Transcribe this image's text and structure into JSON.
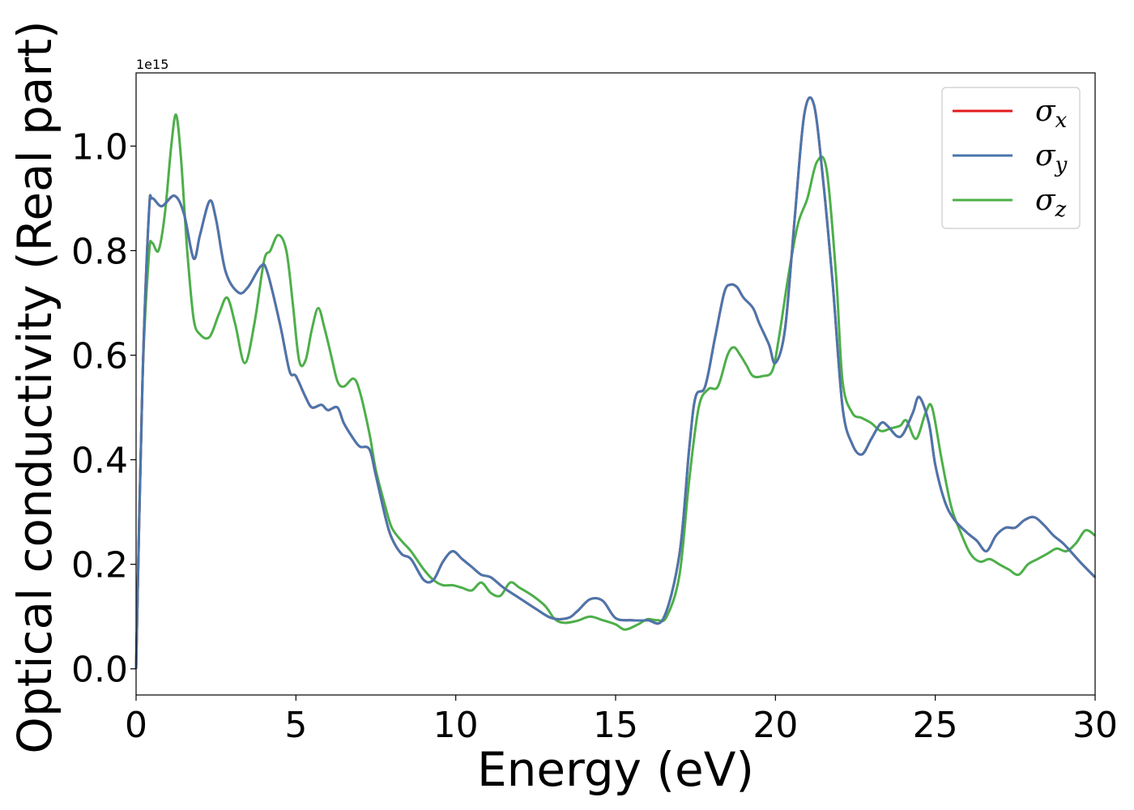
{
  "chart_data": {
    "type": "line",
    "xlabel": "Energy (eV)",
    "ylabel": "Optical conductivity (Real part)",
    "y_offset_label": "1e15",
    "xlim": [
      0,
      30
    ],
    "ylim": [
      -0.05,
      1.14
    ],
    "x_ticks": [
      0,
      5,
      10,
      15,
      20,
      25,
      30
    ],
    "x_tick_labels": [
      "0",
      "5",
      "10",
      "15",
      "20",
      "25",
      "30"
    ],
    "y_ticks": [
      0.0,
      0.2,
      0.4,
      0.6,
      0.8,
      1.0
    ],
    "y_tick_labels": [
      "0.0",
      "0.2",
      "0.4",
      "0.6",
      "0.8",
      "1.0"
    ],
    "grid": false,
    "legend_position": "top-right",
    "series": [
      {
        "name": "σx",
        "symbol": "σ",
        "subscript": "x",
        "color": "#e41a1c",
        "x": [
          0,
          0.2,
          0.4,
          0.5,
          0.8,
          1.2,
          1.5,
          1.8,
          2.0,
          2.3,
          2.5,
          2.8,
          3.2,
          3.5,
          3.9,
          4.1,
          4.5,
          4.8,
          5.0,
          5.3,
          5.5,
          5.8,
          6.0,
          6.3,
          6.5,
          6.8,
          7.0,
          7.3,
          7.5,
          7.8,
          8.0,
          8.3,
          8.6,
          9.0,
          9.3,
          9.6,
          9.9,
          10.2,
          10.5,
          10.8,
          11.1,
          11.5,
          12.0,
          12.5,
          13.0,
          13.5,
          13.8,
          14.2,
          14.6,
          15.0,
          15.5,
          16.0,
          16.5,
          17.0,
          17.3,
          17.5,
          17.8,
          18.1,
          18.4,
          18.6,
          18.8,
          19.0,
          19.3,
          19.5,
          19.8,
          20.0,
          20.3,
          20.6,
          20.9,
          21.2,
          21.5,
          21.8,
          22.1,
          22.4,
          22.7,
          23.0,
          23.3,
          23.5,
          23.8,
          24.0,
          24.3,
          24.5,
          24.8,
          25.0,
          25.3,
          25.6,
          26.0,
          26.3,
          26.6,
          26.9,
          27.2,
          27.5,
          27.8,
          28.1,
          28.4,
          28.7,
          29.0,
          29.3,
          29.6,
          30.0
        ],
        "y": [
          0.0,
          0.55,
          0.87,
          0.9,
          0.885,
          0.905,
          0.87,
          0.785,
          0.83,
          0.895,
          0.86,
          0.76,
          0.72,
          0.73,
          0.77,
          0.76,
          0.66,
          0.57,
          0.56,
          0.52,
          0.5,
          0.505,
          0.495,
          0.5,
          0.47,
          0.44,
          0.425,
          0.42,
          0.37,
          0.29,
          0.25,
          0.22,
          0.21,
          0.17,
          0.17,
          0.205,
          0.225,
          0.21,
          0.195,
          0.18,
          0.175,
          0.155,
          0.135,
          0.115,
          0.097,
          0.097,
          0.11,
          0.133,
          0.13,
          0.097,
          0.093,
          0.093,
          0.097,
          0.22,
          0.42,
          0.52,
          0.54,
          0.63,
          0.72,
          0.735,
          0.73,
          0.71,
          0.69,
          0.66,
          0.62,
          0.585,
          0.65,
          0.86,
          1.06,
          1.08,
          0.93,
          0.73,
          0.5,
          0.43,
          0.41,
          0.44,
          0.47,
          0.465,
          0.445,
          0.45,
          0.49,
          0.52,
          0.47,
          0.39,
          0.32,
          0.285,
          0.26,
          0.245,
          0.225,
          0.255,
          0.27,
          0.27,
          0.285,
          0.29,
          0.275,
          0.255,
          0.24,
          0.22,
          0.2,
          0.175
        ]
      },
      {
        "name": "σy",
        "symbol": "σ",
        "subscript": "y",
        "color": "#4a76ad",
        "x": [
          0,
          0.2,
          0.4,
          0.5,
          0.8,
          1.2,
          1.5,
          1.8,
          2.0,
          2.3,
          2.5,
          2.8,
          3.2,
          3.5,
          3.9,
          4.1,
          4.5,
          4.8,
          5.0,
          5.3,
          5.5,
          5.8,
          6.0,
          6.3,
          6.5,
          6.8,
          7.0,
          7.3,
          7.5,
          7.8,
          8.0,
          8.3,
          8.6,
          9.0,
          9.3,
          9.6,
          9.9,
          10.2,
          10.5,
          10.8,
          11.1,
          11.5,
          12.0,
          12.5,
          13.0,
          13.5,
          13.8,
          14.2,
          14.6,
          15.0,
          15.5,
          16.0,
          16.5,
          17.0,
          17.3,
          17.5,
          17.8,
          18.1,
          18.4,
          18.6,
          18.8,
          19.0,
          19.3,
          19.5,
          19.8,
          20.0,
          20.3,
          20.6,
          20.9,
          21.2,
          21.5,
          21.8,
          22.1,
          22.4,
          22.7,
          23.0,
          23.3,
          23.5,
          23.8,
          24.0,
          24.3,
          24.5,
          24.8,
          25.0,
          25.3,
          25.6,
          26.0,
          26.3,
          26.6,
          26.9,
          27.2,
          27.5,
          27.8,
          28.1,
          28.4,
          28.7,
          29.0,
          29.3,
          29.6,
          30.0
        ],
        "y": [
          0.0,
          0.55,
          0.87,
          0.9,
          0.885,
          0.905,
          0.87,
          0.785,
          0.83,
          0.895,
          0.86,
          0.76,
          0.72,
          0.73,
          0.77,
          0.76,
          0.66,
          0.57,
          0.56,
          0.52,
          0.5,
          0.505,
          0.495,
          0.5,
          0.47,
          0.44,
          0.425,
          0.42,
          0.37,
          0.29,
          0.25,
          0.22,
          0.21,
          0.17,
          0.17,
          0.205,
          0.225,
          0.21,
          0.195,
          0.18,
          0.175,
          0.155,
          0.135,
          0.115,
          0.097,
          0.097,
          0.11,
          0.133,
          0.13,
          0.097,
          0.093,
          0.093,
          0.097,
          0.22,
          0.42,
          0.52,
          0.54,
          0.63,
          0.72,
          0.735,
          0.73,
          0.71,
          0.69,
          0.66,
          0.62,
          0.585,
          0.65,
          0.86,
          1.06,
          1.08,
          0.93,
          0.73,
          0.5,
          0.43,
          0.41,
          0.44,
          0.47,
          0.465,
          0.445,
          0.45,
          0.49,
          0.52,
          0.47,
          0.39,
          0.32,
          0.285,
          0.26,
          0.245,
          0.225,
          0.255,
          0.27,
          0.27,
          0.285,
          0.29,
          0.275,
          0.255,
          0.24,
          0.22,
          0.2,
          0.175
        ]
      },
      {
        "name": "σz",
        "symbol": "σ",
        "subscript": "z",
        "color": "#4daf4a",
        "x": [
          0,
          0.2,
          0.4,
          0.5,
          0.7,
          0.9,
          1.1,
          1.25,
          1.4,
          1.6,
          1.8,
          2.0,
          2.3,
          2.6,
          2.85,
          3.1,
          3.4,
          3.7,
          4.0,
          4.2,
          4.45,
          4.7,
          4.9,
          5.1,
          5.3,
          5.5,
          5.7,
          5.9,
          6.1,
          6.3,
          6.5,
          6.8,
          7.0,
          7.3,
          7.5,
          7.8,
          8.0,
          8.3,
          8.6,
          9.0,
          9.3,
          9.6,
          9.9,
          10.2,
          10.5,
          10.8,
          11.1,
          11.4,
          11.7,
          12.0,
          12.4,
          12.8,
          13.1,
          13.4,
          13.8,
          14.2,
          14.6,
          15.0,
          15.3,
          15.7,
          16.0,
          16.3,
          16.6,
          17.0,
          17.3,
          17.6,
          17.9,
          18.2,
          18.5,
          18.7,
          18.9,
          19.1,
          19.3,
          19.6,
          19.9,
          20.1,
          20.4,
          20.7,
          21.0,
          21.3,
          21.6,
          21.9,
          22.1,
          22.4,
          22.7,
          23.0,
          23.3,
          23.6,
          23.9,
          24.1,
          24.4,
          24.7,
          24.9,
          25.2,
          25.5,
          25.8,
          26.1,
          26.4,
          26.7,
          27.0,
          27.3,
          27.6,
          27.9,
          28.2,
          28.5,
          28.8,
          29.1,
          29.4,
          29.7,
          30.0
        ],
        "y": [
          0.0,
          0.55,
          0.79,
          0.815,
          0.8,
          0.87,
          1.0,
          1.06,
          0.98,
          0.8,
          0.67,
          0.64,
          0.635,
          0.68,
          0.71,
          0.66,
          0.585,
          0.66,
          0.78,
          0.8,
          0.83,
          0.8,
          0.7,
          0.59,
          0.59,
          0.65,
          0.69,
          0.65,
          0.6,
          0.55,
          0.54,
          0.555,
          0.53,
          0.45,
          0.38,
          0.31,
          0.27,
          0.245,
          0.225,
          0.19,
          0.17,
          0.16,
          0.16,
          0.155,
          0.15,
          0.165,
          0.145,
          0.14,
          0.165,
          0.155,
          0.14,
          0.12,
          0.095,
          0.088,
          0.092,
          0.1,
          0.093,
          0.085,
          0.075,
          0.085,
          0.095,
          0.093,
          0.1,
          0.18,
          0.36,
          0.5,
          0.535,
          0.54,
          0.6,
          0.615,
          0.6,
          0.58,
          0.56,
          0.56,
          0.57,
          0.63,
          0.75,
          0.85,
          0.9,
          0.97,
          0.955,
          0.75,
          0.55,
          0.49,
          0.48,
          0.47,
          0.455,
          0.46,
          0.465,
          0.475,
          0.44,
          0.49,
          0.5,
          0.4,
          0.31,
          0.26,
          0.22,
          0.205,
          0.21,
          0.2,
          0.19,
          0.18,
          0.2,
          0.21,
          0.22,
          0.23,
          0.225,
          0.24,
          0.265,
          0.255
        ]
      }
    ]
  }
}
